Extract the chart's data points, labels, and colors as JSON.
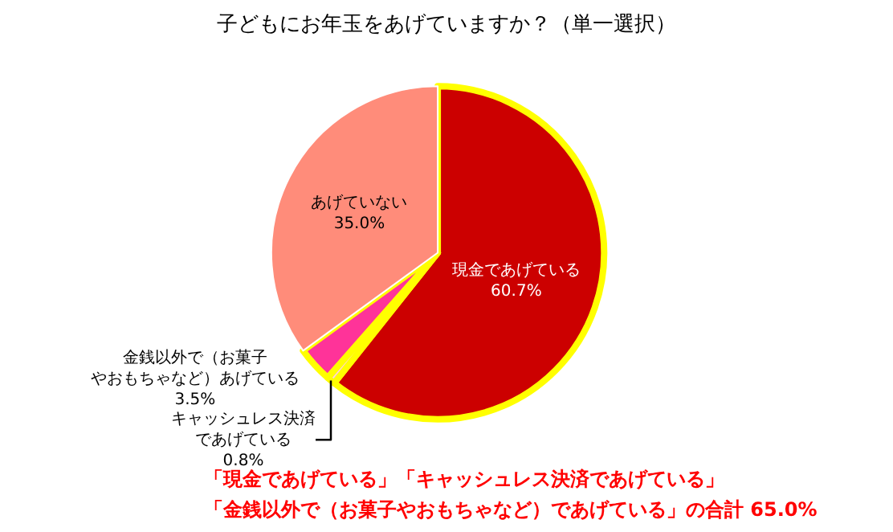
{
  "chart_data": {
    "type": "pie",
    "title": "子どもにお年玉をあげていますか？（単一選択）",
    "categories": [
      "現金であげている",
      "キャッシュレス決済であげている",
      "金銭以外で（お菓子やおもちゃなど）あげている",
      "あげていない"
    ],
    "values": [
      60.7,
      0.8,
      3.5,
      35.0
    ],
    "colors": [
      "#cc0000",
      "#ffd0e0",
      "#ff3399",
      "#ff8c7a"
    ],
    "value_labels": [
      "60.7%",
      "0.8%",
      "3.5%",
      "35.0%"
    ],
    "legend": false,
    "annotations": [
      "「現金であげている」「キャッシュレス決済であげている」",
      "「金銭以外で（お菓子やおもちゃなど）であげている」の合計 65.0%"
    ]
  }
}
